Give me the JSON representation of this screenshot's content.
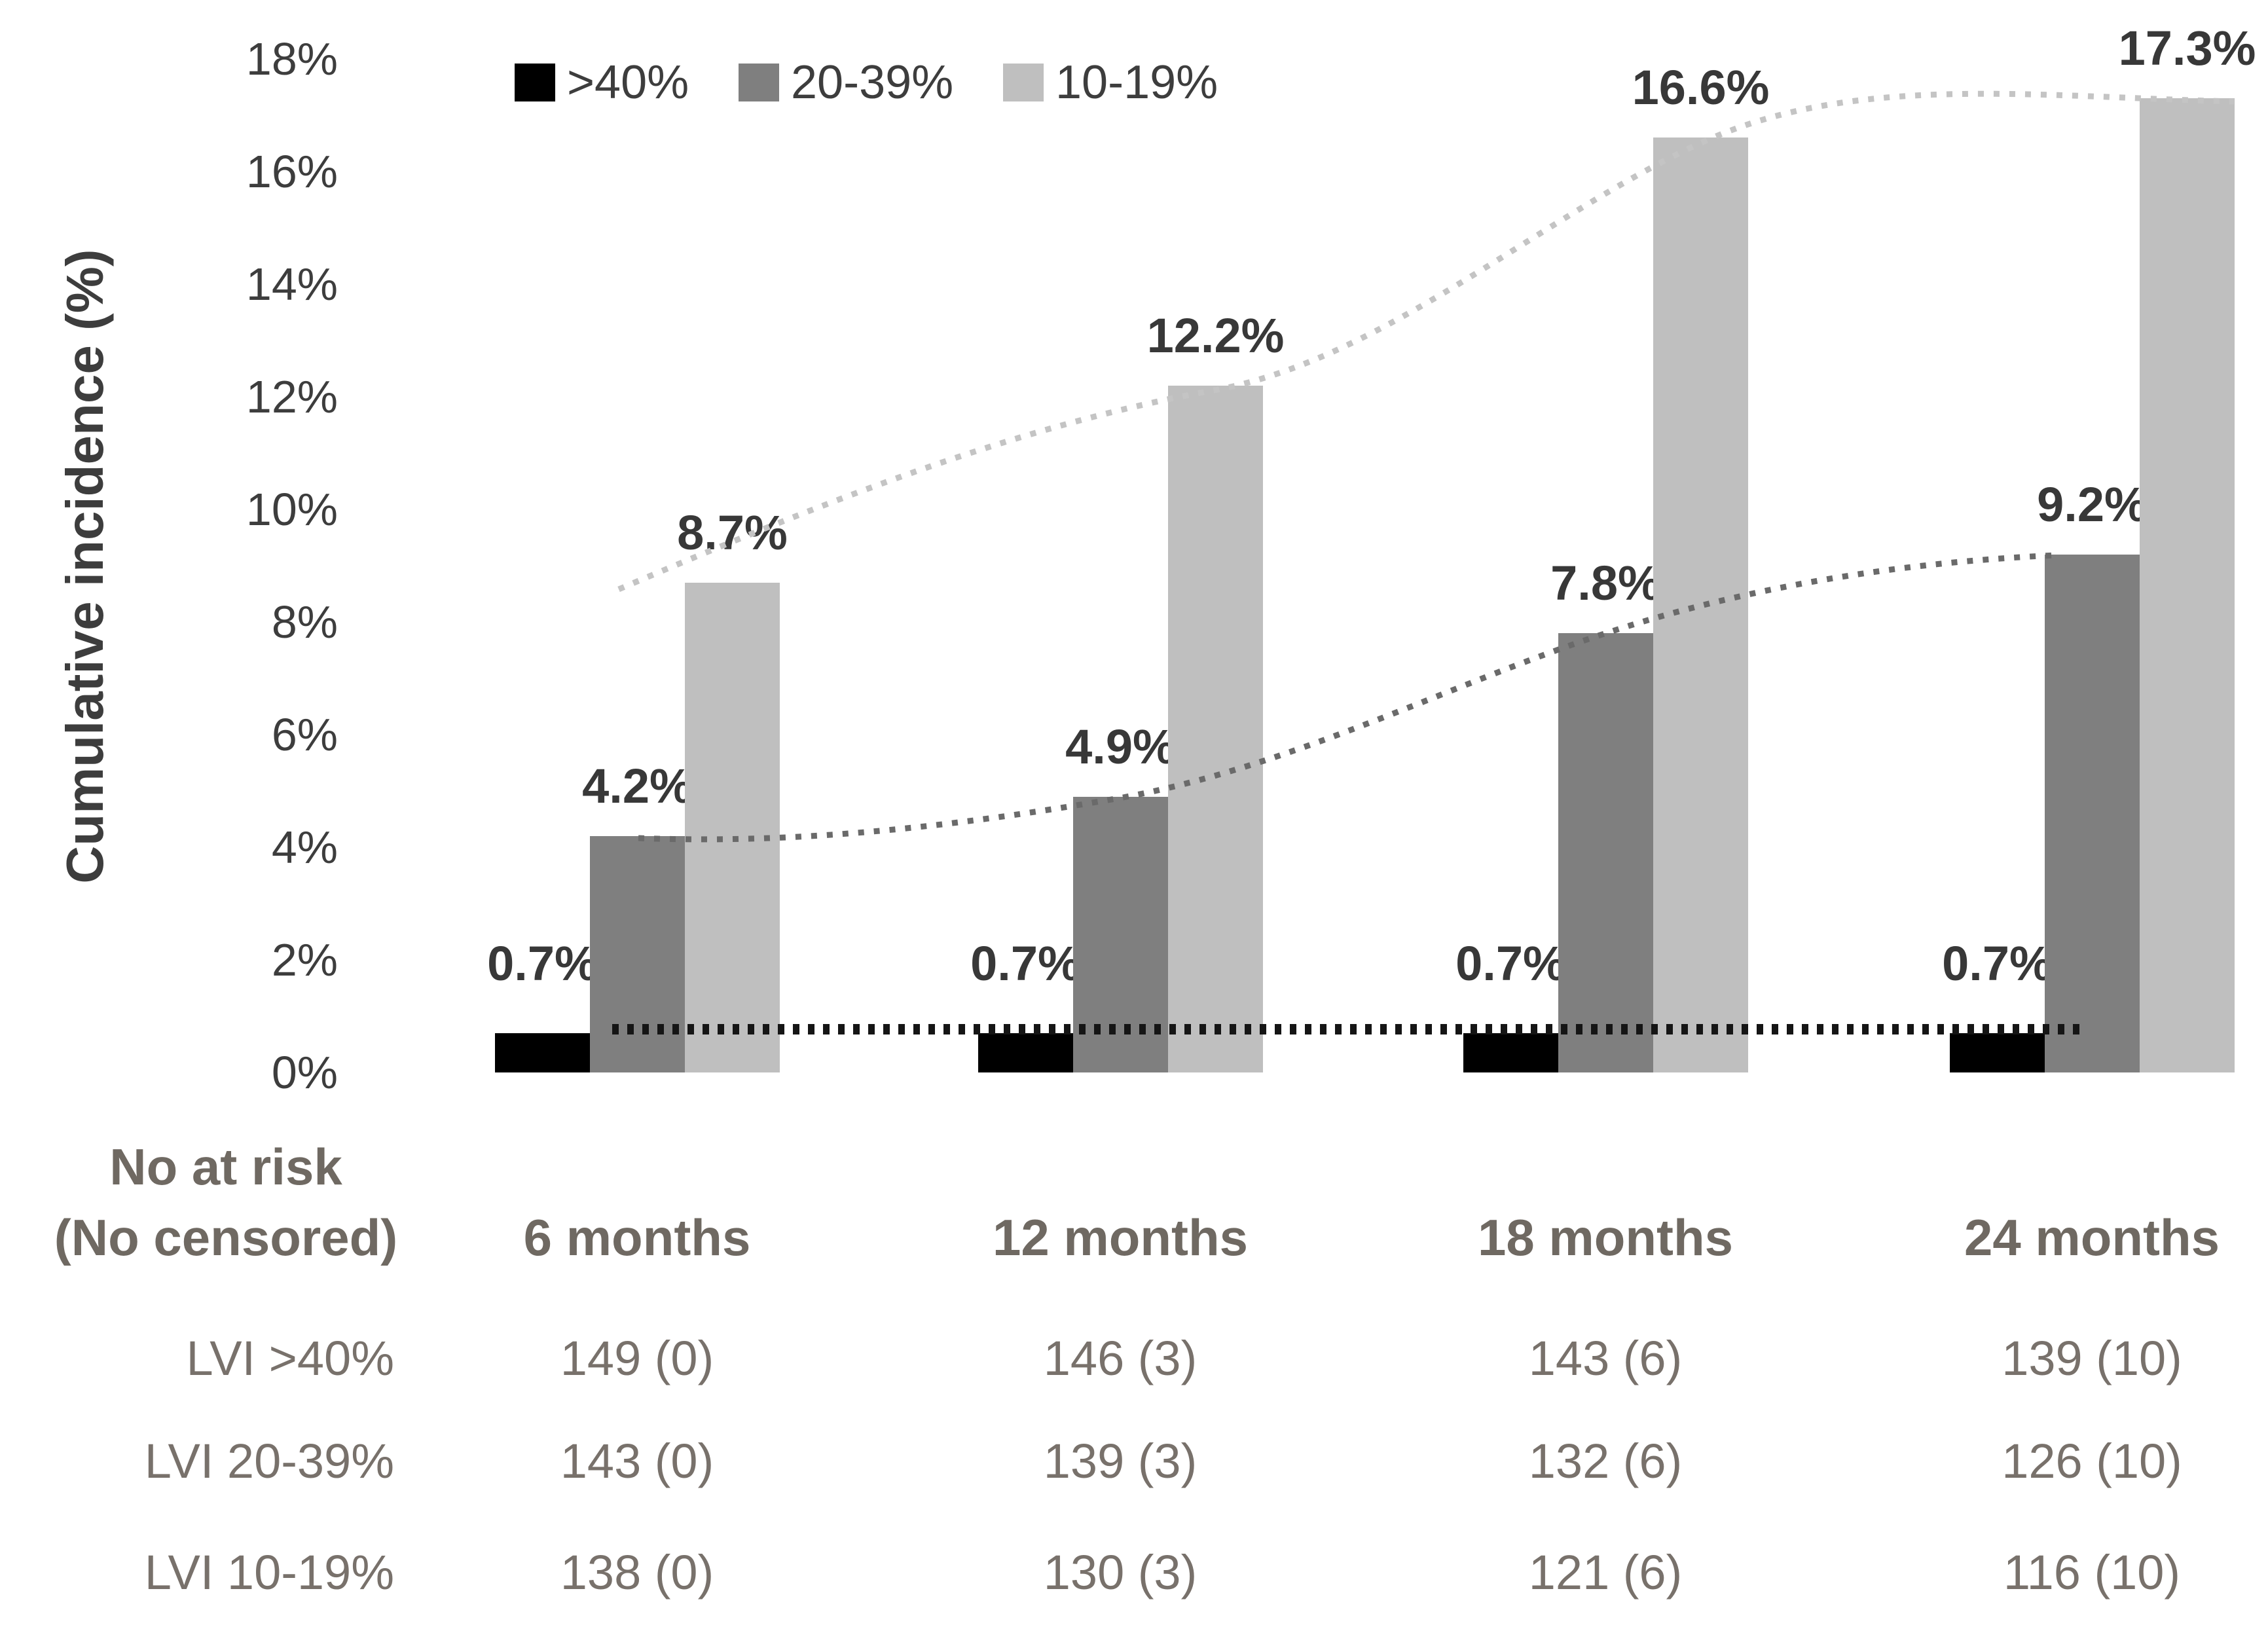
{
  "chart_data": {
    "type": "bar",
    "title": "",
    "ylabel": "Cumulative incidence (%)",
    "xlabel": "",
    "categories": [
      "6 months",
      "12 months",
      "18 months",
      "24 months"
    ],
    "series": [
      {
        "name": ">40%",
        "color": "#000000",
        "values": [
          0.7,
          0.7,
          0.7,
          0.7
        ],
        "data_labels": [
          "0.7%",
          "0.7%",
          "0.7%",
          "0.7%"
        ]
      },
      {
        "name": "20-39%",
        "color": "#7f7f7f",
        "values": [
          4.2,
          4.9,
          7.8,
          9.2
        ],
        "data_labels": [
          "4.2%",
          "4.9%",
          "7.8%",
          "9.2%"
        ]
      },
      {
        "name": "10-19%",
        "color": "#bfbfbf",
        "values": [
          8.7,
          12.2,
          16.6,
          17.3
        ],
        "data_labels": [
          "8.7%",
          "12.2%",
          "16.6%",
          "17.3%"
        ]
      }
    ],
    "yticks": [
      "0%",
      "2%",
      "4%",
      "6%",
      "8%",
      "10%",
      "12%",
      "14%",
      "16%",
      "18%"
    ],
    "ytick_step": 2,
    "ylim": [
      0,
      18
    ],
    "grid": false,
    "legend_position": "top",
    "trend_lines_dotted": true,
    "trend_colors": {
      "gt40": "#151515",
      "p20_39": "#6a6a6a",
      "p10_19": "#c4c4c4"
    }
  },
  "risk_table": {
    "header_line1": "No at risk",
    "header_line2": "(No censored)",
    "columns": [
      "6 months",
      "12 months",
      "18 months",
      "24 months"
    ],
    "rows": [
      {
        "label": "LVI >40%",
        "values": [
          "149 (0)",
          "146 (3)",
          "143 (6)",
          "139 (10)"
        ]
      },
      {
        "label": "LVI 20-39%",
        "values": [
          "143 (0)",
          "139 (3)",
          "132 (6)",
          "126 (10)"
        ]
      },
      {
        "label": "LVI 10-19%",
        "values": [
          "138 (0)",
          "130 (3)",
          "121 (6)",
          "116 (10)"
        ]
      }
    ]
  }
}
